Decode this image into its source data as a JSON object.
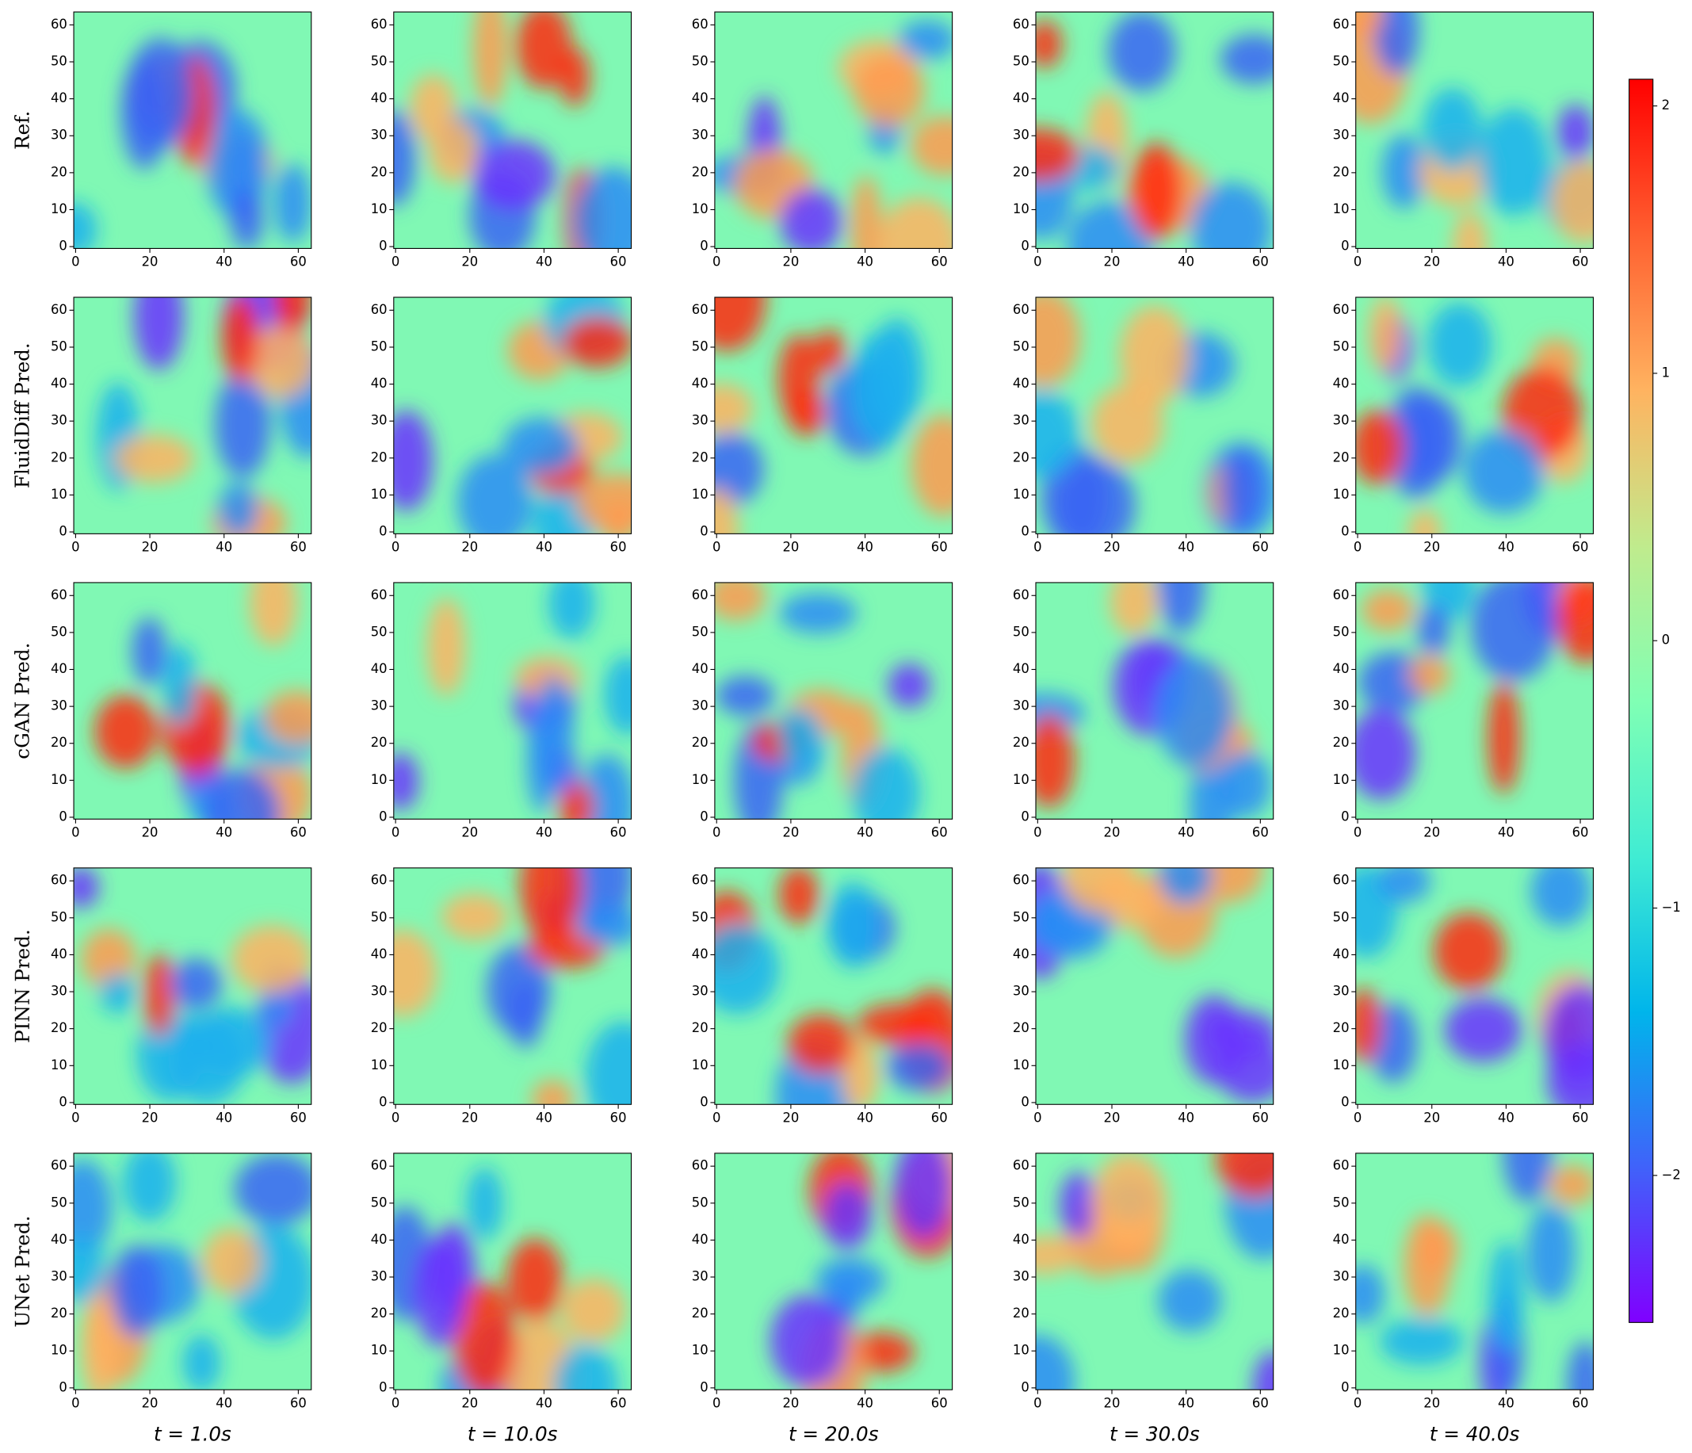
{
  "chart_data": {
    "type": "heatmap",
    "row_labels": [
      "Ref.",
      "FluidDiff Pred.",
      "cGAN Pred.",
      "PINN Pred.",
      "UNet Pred."
    ],
    "column_labels": [
      "t = 1.0s",
      "t = 10.0s",
      "t = 20.0s",
      "t = 30.0s",
      "t = 40.0s"
    ],
    "xlim": [
      -0.5,
      63.5
    ],
    "ylim": [
      -0.5,
      63.5
    ],
    "xticks": [
      0,
      20,
      40,
      60
    ],
    "yticks": [
      0,
      10,
      20,
      30,
      40,
      50,
      60
    ],
    "colormap": "rainbow",
    "clim": [
      -2.55,
      2.1
    ],
    "colorbar_ticks": [
      {
        "value": -2,
        "label": "−2"
      },
      {
        "value": -1,
        "label": "−1"
      },
      0,
      1,
      2
    ]
  }
}
